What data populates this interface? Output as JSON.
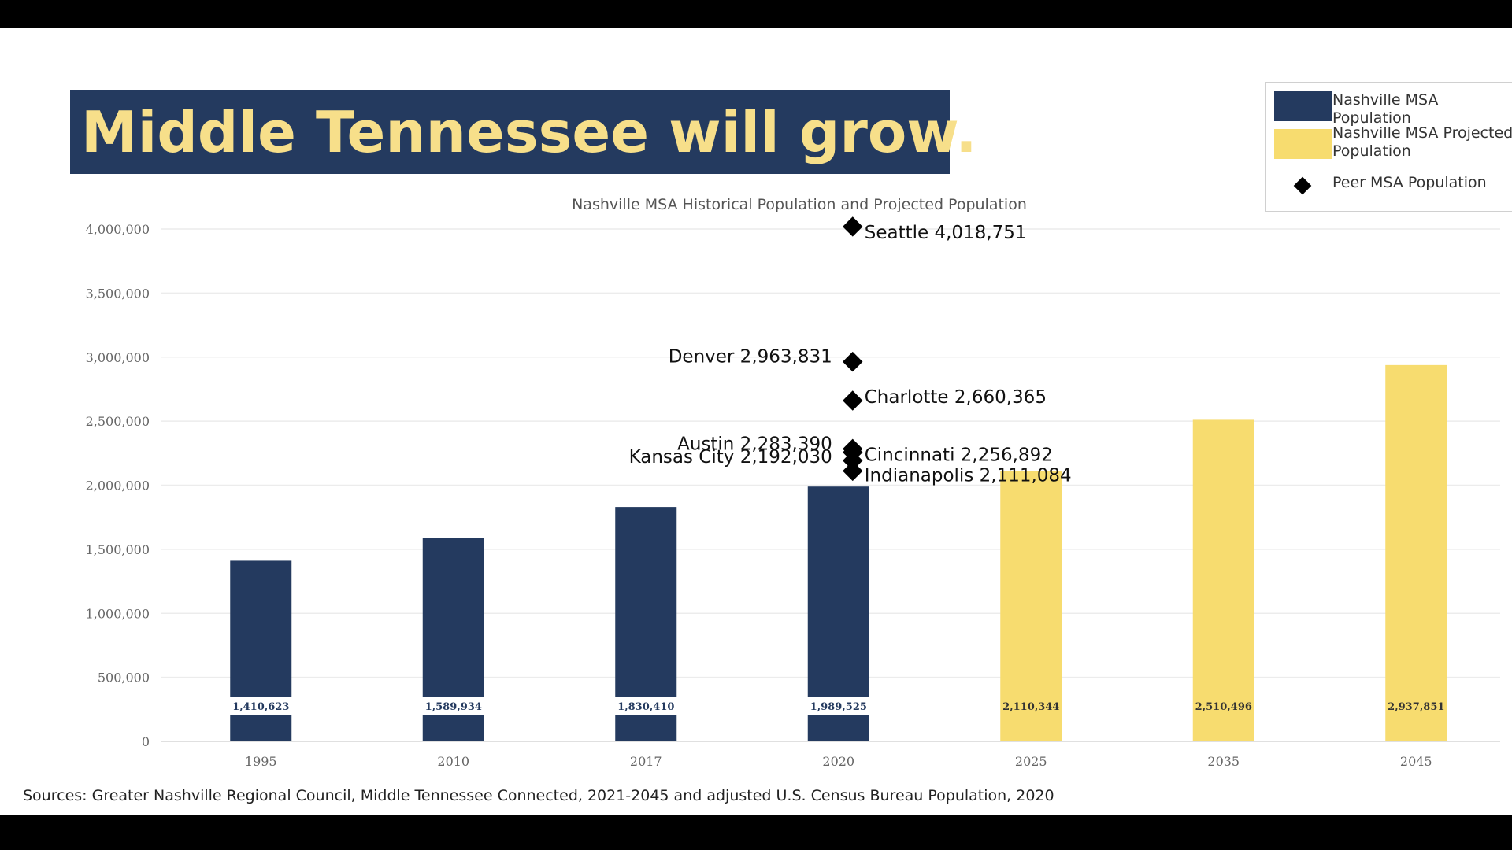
{
  "slide": {
    "banner_title": "Middle Tennessee will grow.",
    "sources": "Sources: Greater Nashville Regional Council, Middle Tennessee Connected, 2021-2045 and adjusted U.S. Census Bureau Population, 2020"
  },
  "colors": {
    "historical": "#243a5f",
    "projected": "#f7dc6f",
    "peer": "#000000",
    "banner_text": "#f7df8a"
  },
  "legend": {
    "items": [
      {
        "label": "Nashville MSA Population",
        "kind": "swatch",
        "color": "#243a5f"
      },
      {
        "label": "Nashville MSA Projected Population",
        "kind": "swatch",
        "color": "#f7dc6f"
      },
      {
        "label": "Peer MSA Population",
        "kind": "diamond",
        "color": "#000000"
      }
    ]
  },
  "chart_data": {
    "type": "bar",
    "title": "Nashville MSA Historical Population and Projected Population",
    "categories": [
      "1995",
      "2010",
      "2017",
      "2020",
      "2025",
      "2035",
      "2045"
    ],
    "series": [
      {
        "name": "Nashville MSA Population",
        "values": [
          1410623,
          1589934,
          1830410,
          1989525,
          null,
          null,
          null
        ],
        "labels": [
          "1,410,623",
          "1,589,934",
          "1,830,410",
          "1,989,525",
          "",
          "",
          ""
        ]
      },
      {
        "name": "Nashville MSA Projected Population",
        "values": [
          null,
          null,
          null,
          null,
          2110344,
          2510496,
          2937851
        ],
        "labels": [
          "",
          "",
          "",
          "",
          "2,110,344",
          "2,510,496",
          "2,937,851"
        ]
      }
    ],
    "peers": [
      {
        "label": "Seattle 4,018,751",
        "value": 4018751,
        "side": "right"
      },
      {
        "label": "Denver 2,963,831",
        "value": 2963831,
        "side": "left"
      },
      {
        "label": "Charlotte 2,660,365",
        "value": 2660365,
        "side": "right"
      },
      {
        "label": "Austin 2,283,390",
        "value": 2283390,
        "side": "left"
      },
      {
        "label": "Cincinnati 2,256,892",
        "value": 2256892,
        "side": "right"
      },
      {
        "label": "Kansas City 2,192,030",
        "value": 2192030,
        "side": "left"
      },
      {
        "label": "Indianapolis 2,111,084",
        "value": 2111084,
        "side": "right"
      }
    ],
    "peer_category": "2020",
    "ylim": [
      0,
      4000000
    ],
    "yticks": [
      0,
      500000,
      1000000,
      1500000,
      2000000,
      2500000,
      3000000,
      3500000,
      4000000
    ],
    "ytick_labels": [
      "0",
      "500,000",
      "1,000,000",
      "1,500,000",
      "2,000,000",
      "2,500,000",
      "3,000,000",
      "3,500,000",
      "4,000,000"
    ],
    "grid": true,
    "legend_position": "top-right"
  }
}
